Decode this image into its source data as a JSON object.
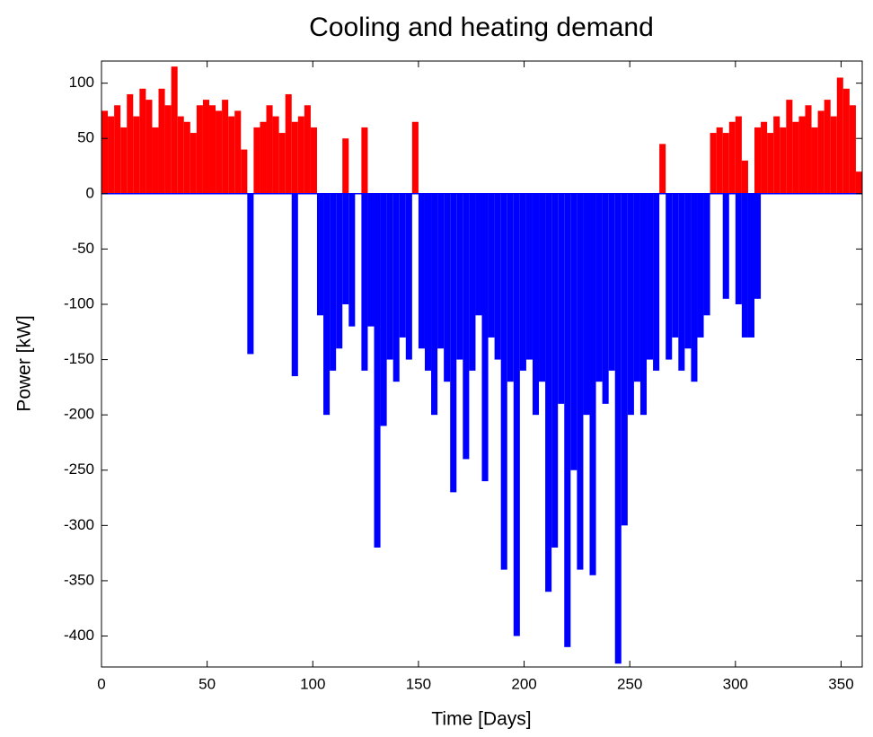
{
  "chart_data": {
    "type": "bar",
    "title": "Cooling and heating demand",
    "xlabel": "Time [Days]",
    "ylabel": "Power [kW]",
    "x": [
      0,
      3,
      6,
      9,
      12,
      15,
      18,
      21,
      24,
      27,
      30,
      33,
      36,
      39,
      42,
      45,
      48,
      51,
      54,
      57,
      60,
      63,
      66,
      69,
      72,
      75,
      78,
      81,
      84,
      87,
      90,
      93,
      96,
      99,
      102,
      105,
      108,
      111,
      114,
      117,
      120,
      123,
      126,
      129,
      132,
      135,
      138,
      141,
      144,
      147,
      150,
      153,
      156,
      159,
      162,
      165,
      168,
      171,
      174,
      177,
      180,
      183,
      186,
      189,
      192,
      195,
      198,
      201,
      204,
      207,
      210,
      213,
      216,
      219,
      222,
      225,
      228,
      231,
      234,
      237,
      240,
      243,
      246,
      249,
      252,
      255,
      258,
      261,
      264,
      267,
      270,
      273,
      276,
      279,
      282,
      285,
      288,
      291,
      294,
      297,
      300,
      303,
      306,
      309,
      312,
      315,
      318,
      321,
      324,
      327,
      330,
      333,
      336,
      339,
      342,
      345,
      348,
      351,
      354,
      357,
      360
    ],
    "series": [
      {
        "color": "#ff0000",
        "values": [
          75,
          70,
          80,
          60,
          90,
          70,
          95,
          85,
          60,
          95,
          80,
          115,
          70,
          65,
          55,
          80,
          85,
          80,
          75,
          85,
          70,
          75,
          40,
          0,
          60,
          65,
          80,
          70,
          55,
          90,
          65,
          70,
          80,
          60,
          0,
          0,
          0,
          0,
          50,
          0,
          0,
          60,
          0,
          0,
          0,
          0,
          0,
          0,
          0,
          65,
          0,
          0,
          0,
          0,
          0,
          0,
          0,
          0,
          0,
          0,
          0,
          0,
          0,
          0,
          0,
          0,
          0,
          0,
          0,
          0,
          0,
          0,
          0,
          0,
          0,
          0,
          0,
          0,
          0,
          0,
          0,
          0,
          0,
          0,
          0,
          0,
          0,
          0,
          45,
          0,
          0,
          0,
          0,
          0,
          0,
          0,
          55,
          60,
          55,
          65,
          70,
          30,
          0,
          60,
          65,
          55,
          70,
          60,
          85,
          65,
          70,
          80,
          60,
          75,
          85,
          70,
          105,
          95,
          80,
          20,
          0
        ]
      },
      {
        "color": "#0000ff",
        "values": [
          0,
          0,
          0,
          0,
          0,
          0,
          0,
          0,
          0,
          0,
          0,
          0,
          0,
          0,
          0,
          0,
          0,
          0,
          0,
          0,
          0,
          0,
          0,
          -145,
          0,
          0,
          0,
          0,
          0,
          0,
          -165,
          0,
          0,
          0,
          -110,
          -200,
          -160,
          -140,
          -100,
          -120,
          0,
          -160,
          -120,
          -320,
          -210,
          -150,
          -170,
          -130,
          -150,
          0,
          -140,
          -160,
          -200,
          -140,
          -170,
          -270,
          -150,
          -240,
          -160,
          -110,
          -260,
          -130,
          -150,
          -340,
          -170,
          -400,
          -160,
          -150,
          -200,
          -170,
          -360,
          -320,
          -190,
          -410,
          -250,
          -340,
          -200,
          -345,
          -170,
          -190,
          -160,
          -425,
          -300,
          -200,
          -170,
          -200,
          -150,
          -160,
          0,
          -150,
          -130,
          -160,
          -140,
          -170,
          -130,
          -110,
          0,
          0,
          -95,
          0,
          -100,
          -130,
          -130,
          -95,
          0,
          0,
          0,
          0,
          0,
          0,
          0,
          0,
          0,
          0,
          0,
          0,
          0,
          0,
          0,
          0,
          0
        ]
      }
    ],
    "xlim": [
      0,
      360
    ],
    "ylim": [
      -428,
      120
    ],
    "xticks": [
      0,
      50,
      100,
      150,
      200,
      250,
      300,
      350
    ],
    "yticks": [
      -400,
      -350,
      -300,
      -250,
      -200,
      -150,
      -100,
      -50,
      0,
      50,
      100
    ]
  }
}
